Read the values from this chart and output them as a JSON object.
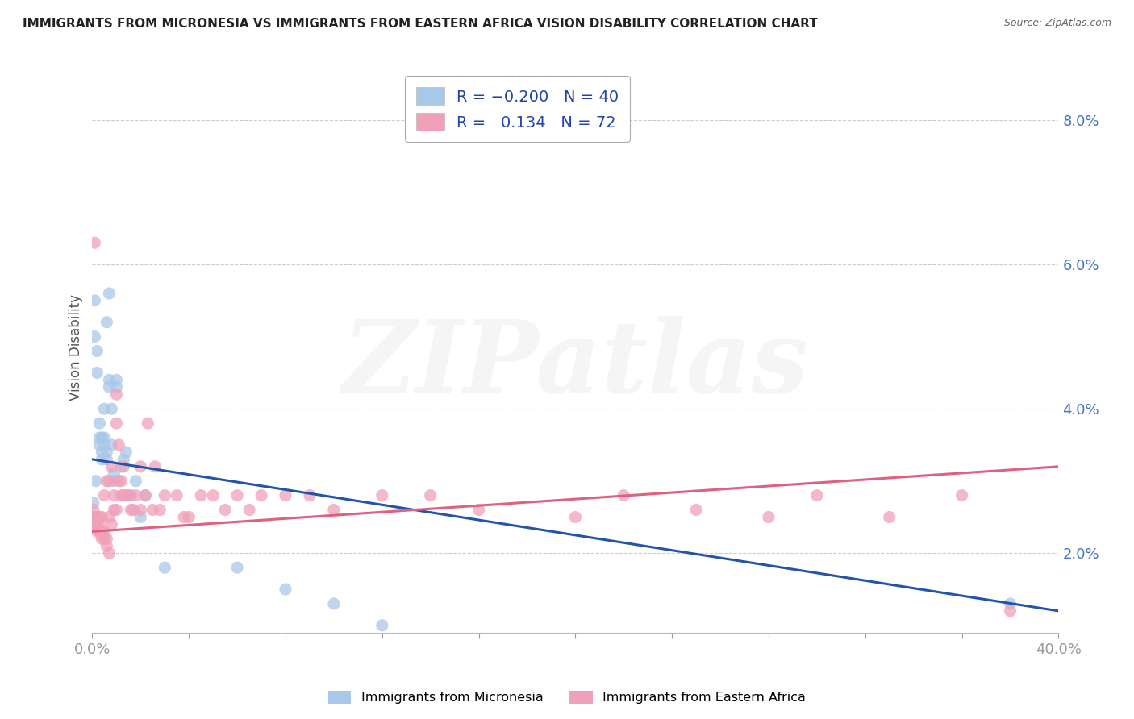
{
  "title": "IMMIGRANTS FROM MICRONESIA VS IMMIGRANTS FROM EASTERN AFRICA VISION DISABILITY CORRELATION CHART",
  "source": "Source: ZipAtlas.com",
  "ylabel": "Vision Disability",
  "xlim": [
    0.0,
    0.4
  ],
  "ylim": [
    0.009,
    0.088
  ],
  "yticks": [
    0.02,
    0.04,
    0.06,
    0.08
  ],
  "watermark": "ZIPatlas",
  "series": [
    {
      "label": "Immigrants from Micronesia",
      "R": -0.2,
      "N": 40,
      "color": "#A8C8E8",
      "line_color": "#2255AA",
      "x": [
        0.0005,
        0.001,
        0.001,
        0.0015,
        0.002,
        0.002,
        0.003,
        0.003,
        0.003,
        0.004,
        0.004,
        0.004,
        0.005,
        0.005,
        0.005,
        0.006,
        0.006,
        0.006,
        0.007,
        0.007,
        0.007,
        0.008,
        0.008,
        0.009,
        0.009,
        0.01,
        0.01,
        0.012,
        0.013,
        0.014,
        0.016,
        0.018,
        0.02,
        0.022,
        0.03,
        0.06,
        0.08,
        0.1,
        0.12,
        0.38
      ],
      "y": [
        0.027,
        0.05,
        0.055,
        0.03,
        0.045,
        0.048,
        0.035,
        0.036,
        0.038,
        0.033,
        0.034,
        0.036,
        0.035,
        0.036,
        0.04,
        0.033,
        0.034,
        0.052,
        0.056,
        0.043,
        0.044,
        0.035,
        0.04,
        0.03,
        0.031,
        0.043,
        0.044,
        0.032,
        0.033,
        0.034,
        0.028,
        0.03,
        0.025,
        0.028,
        0.018,
        0.018,
        0.015,
        0.013,
        0.01,
        0.013
      ],
      "trend_x": [
        0.0,
        0.4
      ],
      "trend_y": [
        0.033,
        0.012
      ]
    },
    {
      "label": "Immigrants from Eastern Africa",
      "R": 0.134,
      "N": 72,
      "color": "#F0A0B8",
      "line_color": "#E06080",
      "x": [
        0.0003,
        0.0005,
        0.001,
        0.001,
        0.001,
        0.002,
        0.002,
        0.002,
        0.003,
        0.003,
        0.003,
        0.004,
        0.004,
        0.004,
        0.005,
        0.005,
        0.005,
        0.006,
        0.006,
        0.006,
        0.007,
        0.007,
        0.007,
        0.008,
        0.008,
        0.009,
        0.009,
        0.01,
        0.01,
        0.01,
        0.011,
        0.011,
        0.012,
        0.012,
        0.013,
        0.013,
        0.014,
        0.015,
        0.016,
        0.017,
        0.018,
        0.02,
        0.02,
        0.022,
        0.023,
        0.025,
        0.026,
        0.028,
        0.03,
        0.035,
        0.038,
        0.04,
        0.045,
        0.05,
        0.055,
        0.06,
        0.065,
        0.07,
        0.08,
        0.09,
        0.1,
        0.12,
        0.14,
        0.16,
        0.2,
        0.22,
        0.25,
        0.28,
        0.3,
        0.33,
        0.36,
        0.38
      ],
      "y": [
        0.025,
        0.026,
        0.024,
        0.025,
        0.063,
        0.023,
        0.024,
        0.025,
        0.023,
        0.024,
        0.025,
        0.022,
        0.023,
        0.025,
        0.022,
        0.023,
        0.028,
        0.021,
        0.022,
        0.03,
        0.02,
        0.025,
        0.03,
        0.024,
        0.032,
        0.026,
        0.028,
        0.026,
        0.038,
        0.042,
        0.03,
        0.035,
        0.028,
        0.03,
        0.028,
        0.032,
        0.028,
        0.028,
        0.026,
        0.026,
        0.028,
        0.026,
        0.032,
        0.028,
        0.038,
        0.026,
        0.032,
        0.026,
        0.028,
        0.028,
        0.025,
        0.025,
        0.028,
        0.028,
        0.026,
        0.028,
        0.026,
        0.028,
        0.028,
        0.028,
        0.026,
        0.028,
        0.028,
        0.026,
        0.025,
        0.028,
        0.026,
        0.025,
        0.028,
        0.025,
        0.028,
        0.012
      ],
      "trend_x": [
        0.0,
        0.4
      ],
      "trend_y": [
        0.023,
        0.032
      ]
    }
  ],
  "background_color": "#FFFFFF",
  "plot_background": "#FFFFFF",
  "grid_color": "#CCCCCC",
  "axis_label_color": "#4472C4",
  "watermark_alpha": 0.18,
  "legend_colors": [
    "#A8C8E8",
    "#F0A0B8"
  ]
}
